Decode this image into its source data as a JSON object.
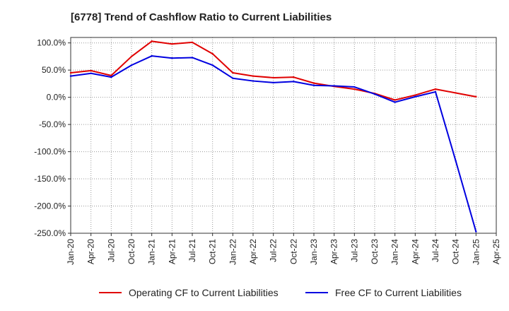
{
  "chart_data": {
    "type": "line",
    "title": "[6778]  Trend of Cashflow Ratio to Current Liabilities",
    "xlabel": "",
    "ylabel": "",
    "ylim": [
      -250,
      110
    ],
    "yticks": [
      "100.0%",
      "50.0%",
      "0.0%",
      "-50.0%",
      "-100.0%",
      "-150.0%",
      "-200.0%",
      "-250.0%"
    ],
    "ytick_values": [
      100,
      50,
      0,
      -50,
      -100,
      -150,
      -200,
      -250
    ],
    "xticks": [
      "Jan-20",
      "Apr-20",
      "Jul-20",
      "Oct-20",
      "Jan-21",
      "Apr-21",
      "Jul-21",
      "Oct-21",
      "Jan-22",
      "Apr-22",
      "Jul-22",
      "Oct-22",
      "Jan-23",
      "Apr-23",
      "Jul-23",
      "Oct-23",
      "Jan-24",
      "Apr-24",
      "Jul-24",
      "Oct-24",
      "Jan-25",
      "Apr-25"
    ],
    "grid": true,
    "legend_position": "bottom",
    "series": [
      {
        "name": "Operating CF to Current Liabilities",
        "color": "#e00000",
        "values": [
          45,
          49,
          40,
          75,
          103,
          98,
          101,
          80,
          45,
          39,
          36,
          37,
          26,
          20,
          15,
          7,
          -5,
          4,
          15,
          8,
          1
        ]
      },
      {
        "name": "Free CF to Current Liabilities",
        "color": "#0000e0",
        "values": [
          39,
          44,
          37,
          59,
          76,
          72,
          73,
          59,
          35,
          30,
          27,
          29,
          22,
          21,
          19,
          6,
          -9,
          1,
          10,
          -117,
          -247
        ]
      }
    ]
  }
}
